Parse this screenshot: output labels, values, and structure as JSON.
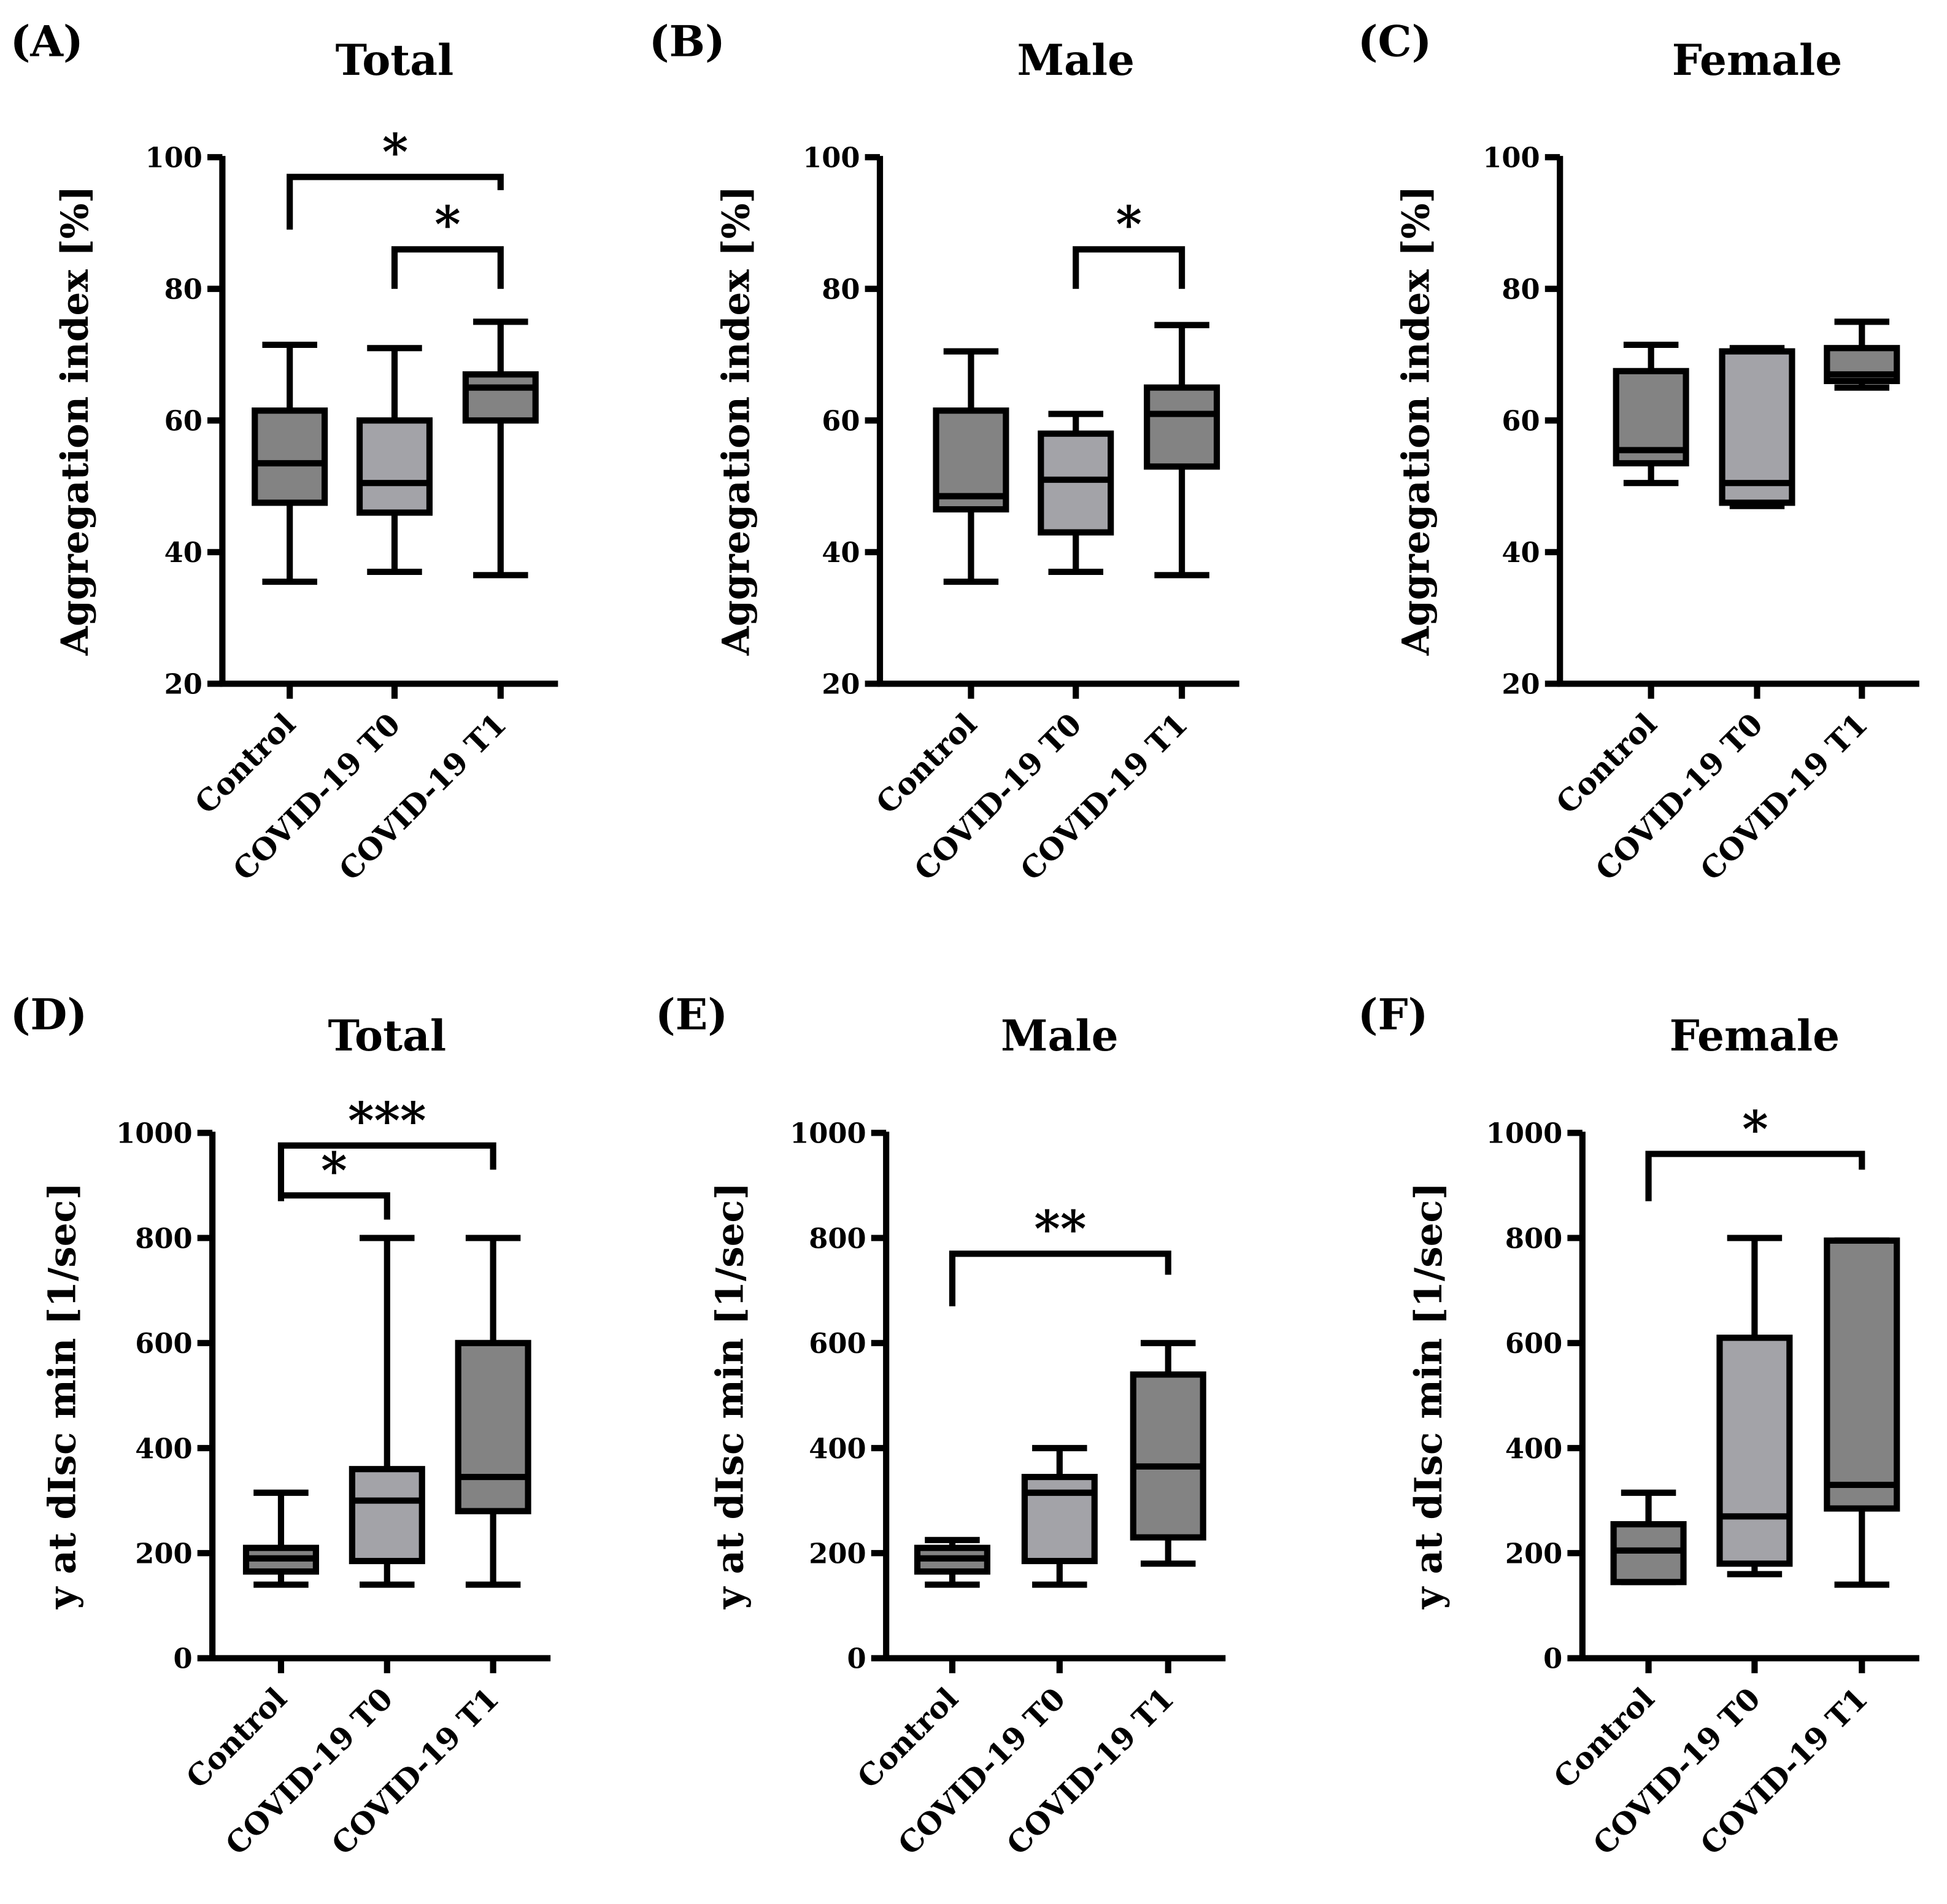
{
  "chart_data": [
    {
      "type": "box",
      "letter": "(A)",
      "title": "Total",
      "ylabel": "Aggregation index [%]",
      "ylim": [
        20,
        100
      ],
      "yticks": [
        20,
        40,
        60,
        80,
        100
      ],
      "categories": [
        "Control",
        "COVID-19 T0",
        "COVID-19 T1"
      ],
      "boxes": [
        {
          "min": 35.5,
          "q1": 47.5,
          "median": 53.5,
          "q3": 61.5,
          "max": 71.5,
          "color": "#838383"
        },
        {
          "min": 37,
          "q1": 46,
          "median": 50.5,
          "q3": 60,
          "max": 71,
          "color": "#a3a3a8"
        },
        {
          "min": 36.5,
          "q1": 60,
          "median": 65,
          "q3": 67,
          "max": 75,
          "color": "#838383"
        }
      ],
      "significance": [
        {
          "from": 0,
          "to": 2,
          "level": 97,
          "left_end": 89,
          "right_end": 95,
          "label": "*"
        },
        {
          "from": 1,
          "to": 2,
          "level": 86,
          "left_end": 80,
          "right_end": 80,
          "label": "*"
        }
      ]
    },
    {
      "type": "box",
      "letter": "(B)",
      "title": "Male",
      "ylabel": "Aggregation index [%]",
      "ylim": [
        20,
        100
      ],
      "yticks": [
        20,
        40,
        60,
        80,
        100
      ],
      "categories": [
        "Control",
        "COVID-19 T0",
        "COVID-19 T1"
      ],
      "boxes": [
        {
          "min": 35.5,
          "q1": 46.5,
          "median": 48.5,
          "q3": 61.5,
          "max": 70.5,
          "color": "#838383"
        },
        {
          "min": 37,
          "q1": 43,
          "median": 51,
          "q3": 58,
          "max": 61,
          "color": "#a3a3a8"
        },
        {
          "min": 36.5,
          "q1": 53,
          "median": 61,
          "q3": 65,
          "max": 74.5,
          "color": "#838383"
        }
      ],
      "significance": [
        {
          "from": 1,
          "to": 2,
          "level": 86,
          "left_end": 80,
          "right_end": 80,
          "label": "*"
        }
      ]
    },
    {
      "type": "box",
      "letter": "(C)",
      "title": "Female",
      "ylabel": "Aggregation index [%]",
      "ylim": [
        20,
        100
      ],
      "yticks": [
        20,
        40,
        60,
        80,
        100
      ],
      "categories": [
        "Control",
        "COVID-19 T0",
        "COVID-19 T1"
      ],
      "boxes": [
        {
          "min": 50.5,
          "q1": 53.5,
          "median": 55.5,
          "q3": 67.5,
          "max": 71.5,
          "color": "#838383"
        },
        {
          "min": 47,
          "q1": 47.5,
          "median": 50.5,
          "q3": 70.5,
          "max": 71,
          "color": "#a3a3a8"
        },
        {
          "min": 65,
          "q1": 66,
          "median": 67,
          "q3": 71,
          "max": 75,
          "color": "#838383"
        }
      ],
      "significance": []
    },
    {
      "type": "box",
      "letter": "(D)",
      "title": "Total",
      "ylabel": "y at dIsc min [1/sec]",
      "ylim": [
        0,
        1000
      ],
      "yticks": [
        0,
        200,
        400,
        600,
        800,
        1000
      ],
      "categories": [
        "Control",
        "COVID-19 T0",
        "COVID-19 T1"
      ],
      "boxes": [
        {
          "min": 140,
          "q1": 165,
          "median": 190,
          "q3": 210,
          "max": 315,
          "color": "#838383"
        },
        {
          "min": 140,
          "q1": 185,
          "median": 300,
          "q3": 360,
          "max": 800,
          "color": "#a3a3a8"
        },
        {
          "min": 140,
          "q1": 280,
          "median": 345,
          "q3": 600,
          "max": 800,
          "color": "#838383"
        }
      ],
      "significance": [
        {
          "from": 0,
          "to": 2,
          "level": 976,
          "left_end": 870,
          "right_end": 930,
          "label": "***"
        },
        {
          "from": 0,
          "to": 1,
          "level": 881,
          "left_end": 881,
          "right_end": 835,
          "label": "*"
        }
      ]
    },
    {
      "type": "box",
      "letter": "(E)",
      "title": "Male",
      "ylabel": "y at dIsc min [1/sec]",
      "ylim": [
        0,
        1000
      ],
      "yticks": [
        0,
        200,
        400,
        600,
        800,
        1000
      ],
      "categories": [
        "Control",
        "COVID-19 T0",
        "COVID-19 T1"
      ],
      "boxes": [
        {
          "min": 140,
          "q1": 165,
          "median": 190,
          "q3": 210,
          "max": 225,
          "color": "#838383"
        },
        {
          "min": 140,
          "q1": 185,
          "median": 315,
          "q3": 345,
          "max": 400,
          "color": "#a3a3a8"
        },
        {
          "min": 180,
          "q1": 230,
          "median": 365,
          "q3": 540,
          "max": 600,
          "color": "#838383"
        }
      ],
      "significance": [
        {
          "from": 0,
          "to": 2,
          "level": 770,
          "left_end": 670,
          "right_end": 730,
          "label": "**"
        }
      ]
    },
    {
      "type": "box",
      "letter": "(F)",
      "title": "Female",
      "ylabel": "y at dIsc min [1/sec]",
      "ylim": [
        0,
        1000
      ],
      "yticks": [
        0,
        200,
        400,
        600,
        800,
        1000
      ],
      "categories": [
        "Control",
        "COVID-19 T0",
        "COVID-19 T1"
      ],
      "boxes": [
        {
          "min": 145,
          "q1": 145,
          "median": 205,
          "q3": 255,
          "max": 315,
          "color": "#838383"
        },
        {
          "min": 160,
          "q1": 180,
          "median": 270,
          "q3": 610,
          "max": 800,
          "color": "#a3a3a8"
        },
        {
          "min": 140,
          "q1": 285,
          "median": 330,
          "q3": 795,
          "max": 795,
          "color": "#838383"
        }
      ],
      "significance": [
        {
          "from": 0,
          "to": 2,
          "level": 960,
          "left_end": 870,
          "right_end": 930,
          "label": "*"
        }
      ]
    }
  ]
}
